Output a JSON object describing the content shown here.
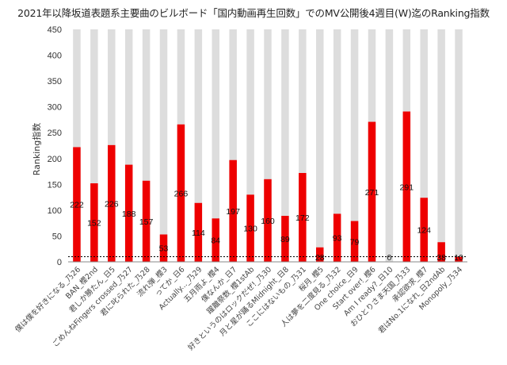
{
  "chart_data": {
    "type": "bar",
    "title": "2021年以降坂道表題系主要曲のビルボード「国内動画再生回数」でのMV公開後4週目(W)迄のRanking指数",
    "xlabel": "",
    "ylabel": "Ranking指数",
    "ylim": [
      0,
      450
    ],
    "yticks": [
      0,
      50,
      100,
      150,
      200,
      250,
      300,
      350,
      400,
      450
    ],
    "grid": false,
    "legend": "none",
    "background_bar_value": 450,
    "reference_line_value": 10,
    "categories": [
      "僕は僕を好きになる_乃26",
      "BAN_櫻2nd",
      "君しか勝たん_日5",
      "ごめんねFingers crossed_乃27",
      "君に叱られた_乃28",
      "流れ弾_櫻3",
      "ってか_日6",
      "Actually..._乃29",
      "五月雨よ_櫻4",
      "僕なんか_日7",
      "躍離祭数_櫻1stAb",
      "好きというのはロックだぜ!_乃30",
      "月と星が踊るMidnight_日8",
      "ここにはないもの_乃31",
      "桜月_櫻5",
      "人は夢を二度見る_乃32",
      "One choice_日9",
      "Start over!_櫻6",
      "Am I ready?_日10",
      "おひとりさま天国_乃33",
      "承認欲求_櫻7",
      "君はNo.1になれ_日2ndAb",
      "Monopoly_乃34"
    ],
    "values": [
      222,
      152,
      226,
      188,
      157,
      53,
      266,
      114,
      84,
      197,
      130,
      160,
      89,
      172,
      28,
      93,
      79,
      271,
      0,
      291,
      124,
      38,
      10
    ],
    "data_labels": [
      "222",
      "152",
      "226",
      "188",
      "157",
      "53",
      "266",
      "114",
      "84",
      "197",
      "130",
      "160",
      "89",
      "172",
      "28",
      "93",
      "79",
      "271",
      "0",
      "291",
      "124",
      "38",
      "10"
    ],
    "colors": {
      "bar": "#ee0000",
      "background_bar": "#dddddd",
      "axis": "#888888",
      "reference_line": "#000000"
    }
  }
}
